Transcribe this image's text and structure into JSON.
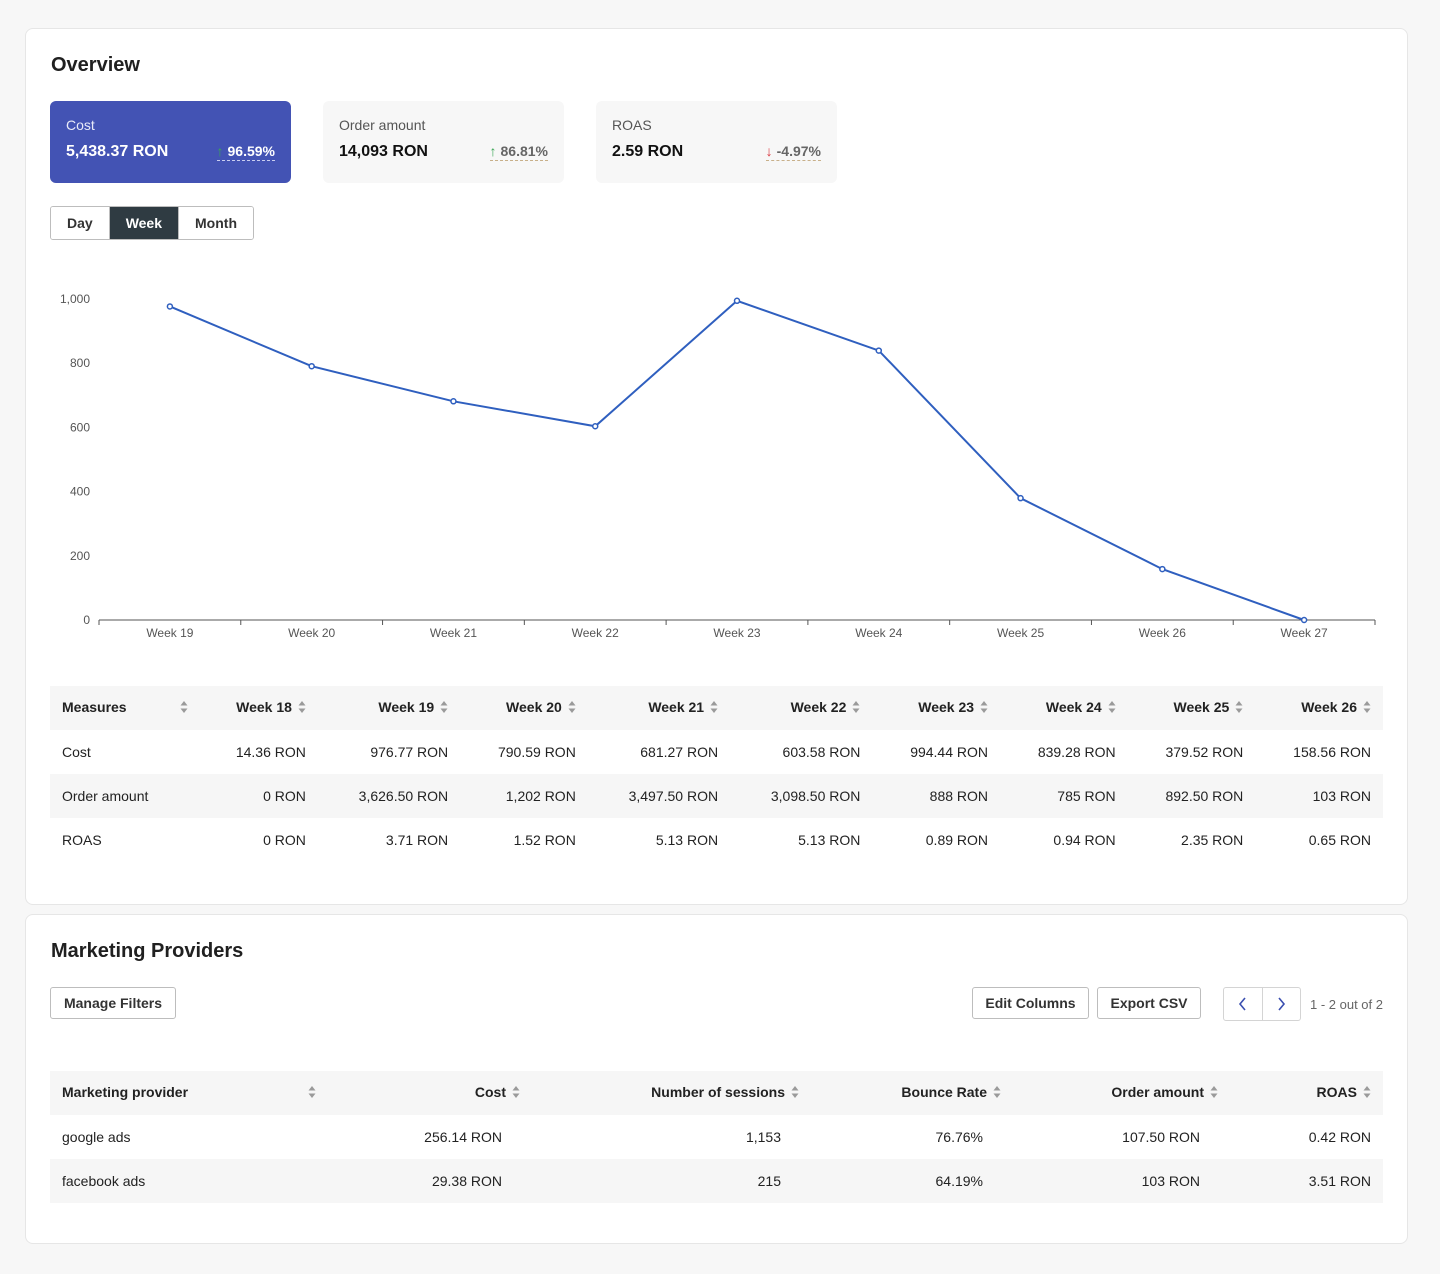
{
  "overview": {
    "title": "Overview",
    "kpis": [
      {
        "label": "Cost",
        "value": "5,438.37 RON",
        "change": "96.59%",
        "direction": "up",
        "active": true
      },
      {
        "label": "Order amount",
        "value": "14,093 RON",
        "change": "86.81%",
        "direction": "up",
        "active": false
      },
      {
        "label": "ROAS",
        "value": "2.59 RON",
        "change": "-4.97%",
        "direction": "down",
        "active": false
      }
    ],
    "granularity": {
      "options": [
        "Day",
        "Week",
        "Month"
      ],
      "selected": "Week"
    }
  },
  "chart_data": {
    "type": "line",
    "x": [
      "Week 19",
      "Week 20",
      "Week 21",
      "Week 22",
      "Week 23",
      "Week 24",
      "Week 25",
      "Week 26",
      "Week 27"
    ],
    "series": [
      {
        "values": [
          976.77,
          790.59,
          681.27,
          603.58,
          994.44,
          839.28,
          379.52,
          158.56,
          0
        ]
      }
    ],
    "yticks": [
      "0",
      "200",
      "400",
      "600",
      "800",
      "1,000"
    ],
    "ylim": [
      0,
      1000
    ],
    "grid": false,
    "color": "#2f5fbf"
  },
  "measures_table": {
    "headers": [
      "Measures",
      "Week 18",
      "Week 19",
      "Week 20",
      "Week 21",
      "Week 22",
      "Week 23",
      "Week 24",
      "Week 25",
      "Week 26"
    ],
    "rows": [
      [
        "Cost",
        "14.36 RON",
        "976.77 RON",
        "790.59 RON",
        "681.27 RON",
        "603.58 RON",
        "994.44 RON",
        "839.28 RON",
        "379.52 RON",
        "158.56 RON"
      ],
      [
        "Order amount",
        "0 RON",
        "3,626.50 RON",
        "1,202 RON",
        "3,497.50 RON",
        "3,098.50 RON",
        "888 RON",
        "785 RON",
        "892.50 RON",
        "103 RON"
      ],
      [
        "ROAS",
        "0 RON",
        "3.71 RON",
        "1.52 RON",
        "5.13 RON",
        "5.13 RON",
        "0.89 RON",
        "0.94 RON",
        "2.35 RON",
        "0.65 RON"
      ]
    ]
  },
  "providers": {
    "title": "Marketing Providers",
    "manage_filters": "Manage Filters",
    "edit_columns": "Edit Columns",
    "export_csv": "Export CSV",
    "pagination": "1 - 2 out of 2",
    "table": {
      "headers": [
        "Marketing provider",
        "Cost",
        "Number of sessions",
        "Bounce Rate",
        "Order amount",
        "ROAS"
      ],
      "rows": [
        [
          "google ads",
          "256.14 RON",
          "1,153",
          "76.76%",
          "107.50 RON",
          "0.42 RON"
        ],
        [
          "facebook ads",
          "29.38 RON",
          "215",
          "64.19%",
          "103 RON",
          "3.51 RON"
        ]
      ]
    }
  }
}
